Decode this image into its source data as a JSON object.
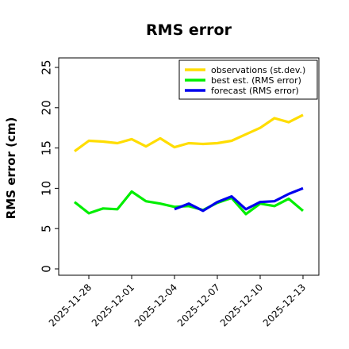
{
  "chart_data": {
    "type": "line",
    "title": "RMS error",
    "xlabel": "",
    "ylabel": "RMS error (cm)",
    "ylim": [
      0,
      25
    ],
    "xlim": [
      "2025-11-26",
      "2025-12-14"
    ],
    "yticks": [
      0,
      5,
      10,
      15,
      20,
      25
    ],
    "xticks": [
      "2025-11-28",
      "2025-12-01",
      "2025-12-04",
      "2025-12-07",
      "2025-12-10",
      "2025-12-13"
    ],
    "highlighted_xtick": "2025-12-04",
    "highlight_color": "#2e8b2e",
    "grid": false,
    "legend_position": "top-right",
    "series": [
      {
        "name": "observations (st.dev.)",
        "color": "#ffdd00",
        "x": [
          "2025-11-27",
          "2025-11-28",
          "2025-11-29",
          "2025-11-30",
          "2025-12-01",
          "2025-12-02",
          "2025-12-03",
          "2025-12-04",
          "2025-12-05",
          "2025-12-06",
          "2025-12-07",
          "2025-12-08",
          "2025-12-09",
          "2025-12-10",
          "2025-12-11",
          "2025-12-12",
          "2025-12-13"
        ],
        "values": [
          14.6,
          15.9,
          15.8,
          15.6,
          16.1,
          15.2,
          16.2,
          15.1,
          15.6,
          15.5,
          15.6,
          15.9,
          16.7,
          17.5,
          18.7,
          18.2,
          19.1
        ]
      },
      {
        "name": "best est. (RMS error)",
        "color": "#00ee00",
        "x": [
          "2025-11-27",
          "2025-11-28",
          "2025-11-29",
          "2025-11-30",
          "2025-12-01",
          "2025-12-02",
          "2025-12-03",
          "2025-12-04",
          "2025-12-05",
          "2025-12-06",
          "2025-12-07",
          "2025-12-08",
          "2025-12-09",
          "2025-12-10",
          "2025-12-11",
          "2025-12-12",
          "2025-12-13"
        ],
        "values": [
          8.3,
          6.9,
          7.5,
          7.4,
          9.6,
          8.4,
          8.1,
          7.7,
          7.8,
          7.3,
          8.2,
          8.8,
          6.8,
          8.1,
          7.8,
          8.7,
          7.2
        ]
      },
      {
        "name": "forecast (RMS error)",
        "color": "#0000ee",
        "x": [
          "2025-12-04",
          "2025-12-05",
          "2025-12-06",
          "2025-12-07",
          "2025-12-08",
          "2025-12-09",
          "2025-12-10",
          "2025-12-11",
          "2025-12-12",
          "2025-12-13"
        ],
        "values": [
          7.4,
          8.1,
          7.2,
          8.3,
          9.0,
          7.4,
          8.3,
          8.4,
          9.3,
          10.0
        ]
      }
    ]
  }
}
